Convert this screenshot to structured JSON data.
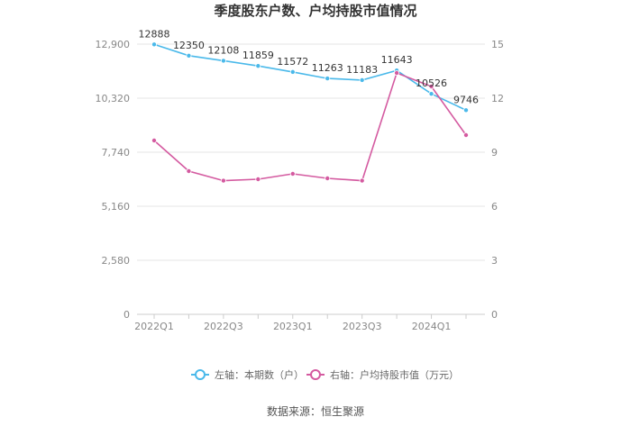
{
  "chart_data": {
    "type": "line",
    "title": "季度股东户数、户均持股市值情况",
    "categories": [
      "2022Q1",
      "2022Q2",
      "2022Q3",
      "2022Q4",
      "2023Q1",
      "2023Q2",
      "2023Q3",
      "2023Q4",
      "2024Q1",
      "2024Q2"
    ],
    "x_tick_labels": [
      "2022Q1",
      "2022Q3",
      "2023Q1",
      "2023Q3",
      "2024Q1"
    ],
    "y_left": {
      "ticks": [
        "0",
        "2,580",
        "5,160",
        "7,740",
        "10,320",
        "12,900"
      ],
      "min": 0,
      "max": 12900
    },
    "y_right": {
      "ticks": [
        "0",
        "3",
        "6",
        "9",
        "12",
        "15"
      ],
      "min": 0,
      "max": 15
    },
    "grid": true,
    "legend_position": "bottom",
    "series": [
      {
        "name": "左轴：本期数（户）",
        "axis": "left",
        "color": "#4ab9ea",
        "values": [
          12888,
          12350,
          12108,
          11859,
          11572,
          11263,
          11183,
          11643,
          10526,
          9746
        ],
        "labels": [
          "12888",
          "12350",
          "12108",
          "11859",
          "11572",
          "11263",
          "11183",
          "11643",
          "10526",
          "9746"
        ]
      },
      {
        "name": "右轴：户均持股市值（万元）",
        "axis": "right",
        "color": "#d45aa0",
        "values": [
          9.65,
          7.95,
          7.42,
          7.5,
          7.8,
          7.55,
          7.42,
          13.4,
          12.65,
          9.95
        ]
      }
    ]
  },
  "footer": {
    "source": "数据来源：恒生聚源"
  }
}
